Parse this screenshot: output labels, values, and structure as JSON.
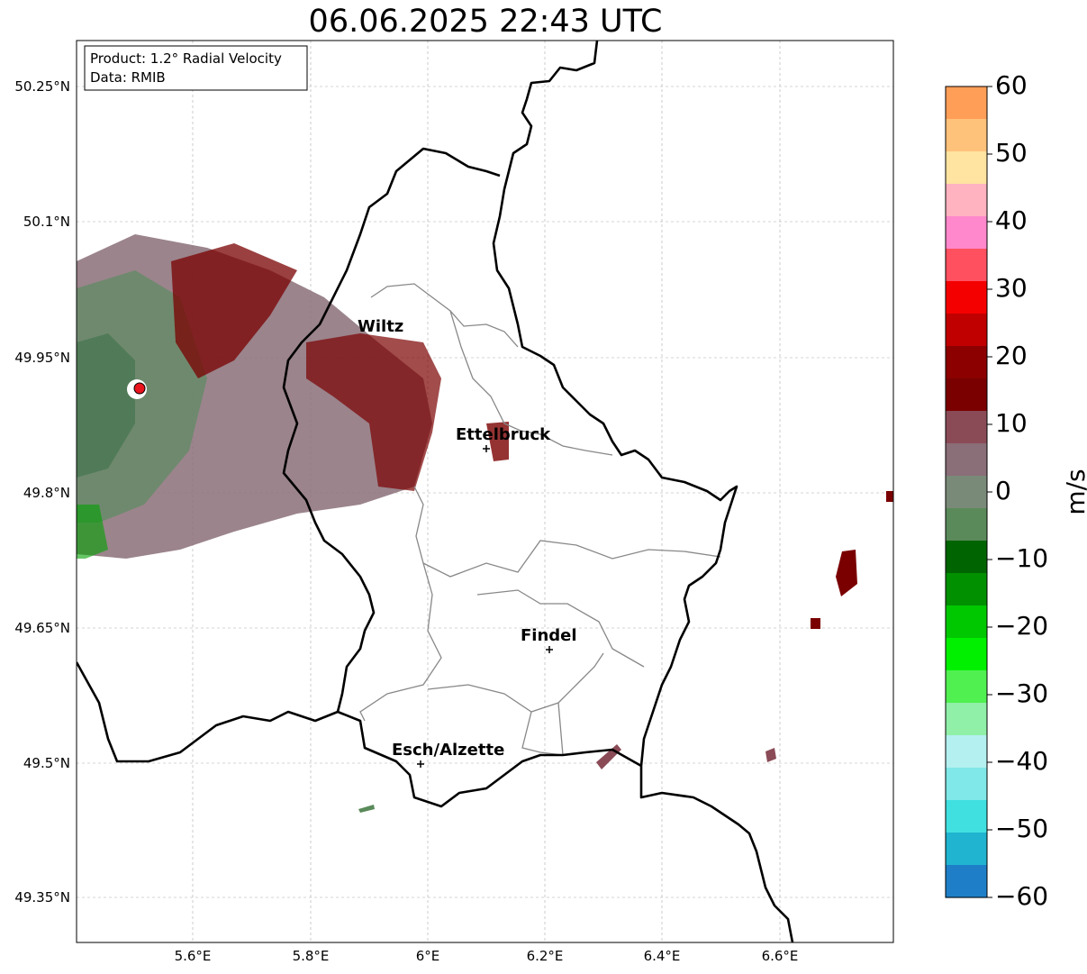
{
  "title": "06.06.2025 22:43 UTC",
  "info_box": {
    "product_line": "Product: 1.2° Radial Velocity",
    "data_line": "Data: RMIB"
  },
  "axes": {
    "lat_labels": [
      "50.25°N",
      "50.1°N",
      "49.95°N",
      "49.8°N",
      "49.65°N",
      "49.5°N",
      "49.35°N"
    ],
    "lon_labels": [
      "5.6°E",
      "5.8°E",
      "6°E",
      "6.2°E",
      "6.4°E",
      "6.6°E"
    ]
  },
  "cities": [
    {
      "name": "Wiltz"
    },
    {
      "name": "Ettelbruck"
    },
    {
      "name": "Findel"
    },
    {
      "name": "Esch/Alzette"
    }
  ],
  "colorbar": {
    "unit": "m/s",
    "ticks": [
      "60",
      "50",
      "40",
      "30",
      "20",
      "10",
      "0",
      "−10",
      "−20",
      "−30",
      "−40",
      "−50",
      "−60"
    ],
    "range": [
      -60,
      60
    ],
    "colors_top_to_bottom": [
      "#ff9e57",
      "#ffc27a",
      "#ffe3a0",
      "#ffb3c1",
      "#ff88cc",
      "#ff5060",
      "#f50000",
      "#c00000",
      "#8c0000",
      "#7a0000",
      "#8a4b57",
      "#8a6e78",
      "#7a8a78",
      "#5a8a5a",
      "#006400",
      "#009000",
      "#00c800",
      "#00f000",
      "#50f050",
      "#90f0a8",
      "#b4f0f0",
      "#80e8e8",
      "#40e0e0",
      "#20b4d0",
      "#1e7fc8"
    ]
  },
  "radar_site": {
    "color": "#e8141e"
  }
}
